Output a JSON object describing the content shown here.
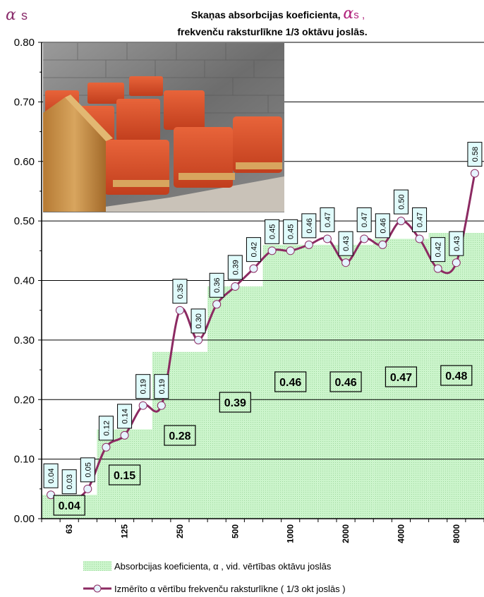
{
  "chart_data": {
    "type": "bar",
    "title_line1": "Skaņas absorbcijas koeficienta, ",
    "title_alpha": "α",
    "title_alpha_sub": "s ,",
    "title_line2": "frekvenču raksturlīkne 1/3 oktāvu joslās.",
    "ylabel_alpha": "α",
    "ylabel_sub": "s",
    "ylim": [
      0,
      0.8
    ],
    "yticks": [
      "0.00",
      "0.10",
      "0.20",
      "0.30",
      "0.40",
      "0.50",
      "0.60",
      "0.70",
      "0.80"
    ],
    "grid": true,
    "octave_categories": [
      "63",
      "125",
      "250",
      "500",
      "1000",
      "2000",
      "4000",
      "8000"
    ],
    "octave_values": [
      0.04,
      0.15,
      0.28,
      0.39,
      0.46,
      0.46,
      0.47,
      0.48
    ],
    "octave_value_labels": [
      "0.04",
      "0.15",
      "0.28",
      "0.39",
      "0.46",
      "0.46",
      "0.47",
      "0.48"
    ],
    "third_octave_values": [
      0.04,
      0.03,
      0.05,
      0.12,
      0.14,
      0.19,
      0.19,
      0.35,
      0.3,
      0.36,
      0.39,
      0.42,
      0.45,
      0.45,
      0.46,
      0.47,
      0.43,
      0.47,
      0.46,
      0.5,
      0.47,
      0.42,
      0.43,
      0.58
    ],
    "third_octave_labels": [
      "0.04",
      "0.03",
      "0.05",
      "0.12",
      "0.14",
      "0.19",
      "0.19",
      "0.35",
      "0.30",
      "0.36",
      "0.39",
      "0.42",
      "0.45",
      "0.45",
      "0.46",
      "0.47",
      "0.43",
      "0.47",
      "0.46",
      "0.50",
      "0.47",
      "0.42",
      "0.43",
      "0.58"
    ],
    "series": [
      {
        "name": "Absorbcijas koeficienta, α , vid. vērtības oktāvu joslās",
        "type": "bar"
      },
      {
        "name": "Izmērīto α vērtību frekvenču raksturlīkne ( 1/3 okt joslās )",
        "type": "line"
      }
    ],
    "legend_position": "bottom",
    "colors": {
      "bar_fill": "#ccf5cc",
      "bar_dot": "#9ed69e",
      "line": "#8c2a62",
      "marker": "#e6f4ff",
      "label_box": "#e0fbfb",
      "grid": "#000000"
    }
  }
}
